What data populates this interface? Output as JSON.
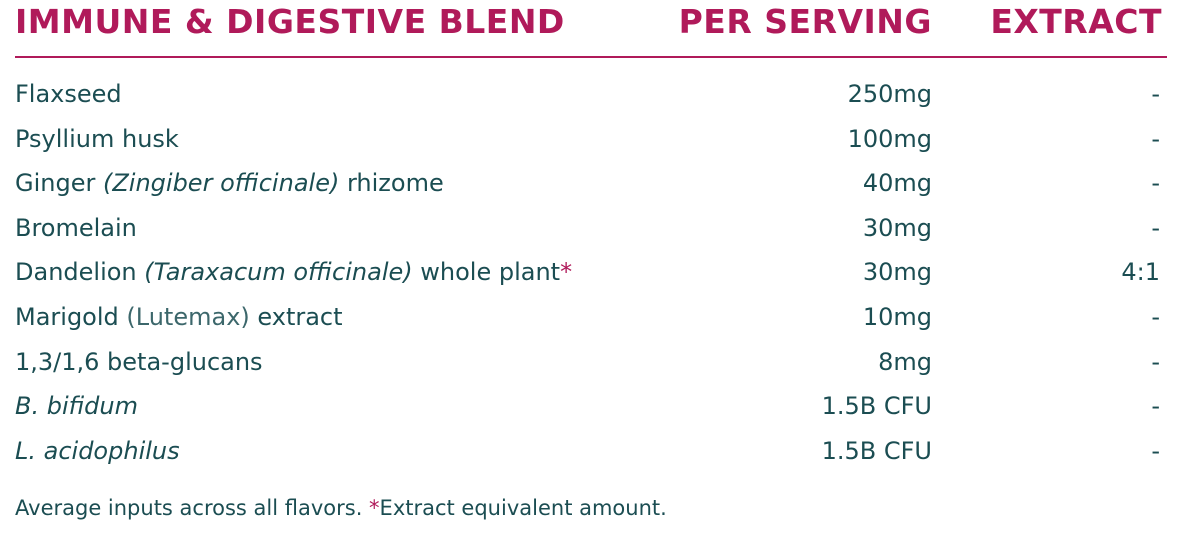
{
  "header": {
    "title": "IMMUNE & DIGESTIVE BLEND",
    "per_serving": "PER SERVING",
    "extract": "EXTRACT"
  },
  "table": {
    "rows": [
      {
        "name": [
          {
            "text": "Flaxseed"
          }
        ],
        "per_serving": "250mg",
        "extract": "-"
      },
      {
        "name": [
          {
            "text": "Psyllium husk"
          }
        ],
        "per_serving": "100mg",
        "extract": "-"
      },
      {
        "name": [
          {
            "text": "Ginger "
          },
          {
            "text": "(Zingiber officinale)",
            "italic": true
          },
          {
            "text": " rhizome"
          }
        ],
        "per_serving": "40mg",
        "extract": "-"
      },
      {
        "name": [
          {
            "text": "Bromelain"
          }
        ],
        "per_serving": "30mg",
        "extract": "-"
      },
      {
        "name": [
          {
            "text": "Dandelion "
          },
          {
            "text": "(Taraxacum officinale)",
            "italic": true
          },
          {
            "text": " whole plant"
          },
          {
            "text": "*",
            "accent": true
          }
        ],
        "per_serving": "30mg",
        "extract": "4:1"
      },
      {
        "name": [
          {
            "text": "Marigold "
          },
          {
            "text": "(Lutemax)",
            "light": true
          },
          {
            "text": " extract"
          }
        ],
        "per_serving": "10mg",
        "extract": "-"
      },
      {
        "name": [
          {
            "text": "1,3/1,6 beta-glucans"
          }
        ],
        "per_serving": "8mg",
        "extract": "-"
      },
      {
        "name": [
          {
            "text": "B. bifidum",
            "italic": true
          }
        ],
        "per_serving": "1.5B CFU",
        "extract": "-"
      },
      {
        "name": [
          {
            "text": "L. acidophilus",
            "italic": true
          }
        ],
        "per_serving": "1.5B CFU",
        "extract": "-"
      }
    ]
  },
  "footer": [
    {
      "text": "Average inputs across all flavors. "
    },
    {
      "text": "*",
      "accent": true
    },
    {
      "text": "Extract equivalent amount."
    }
  ]
}
